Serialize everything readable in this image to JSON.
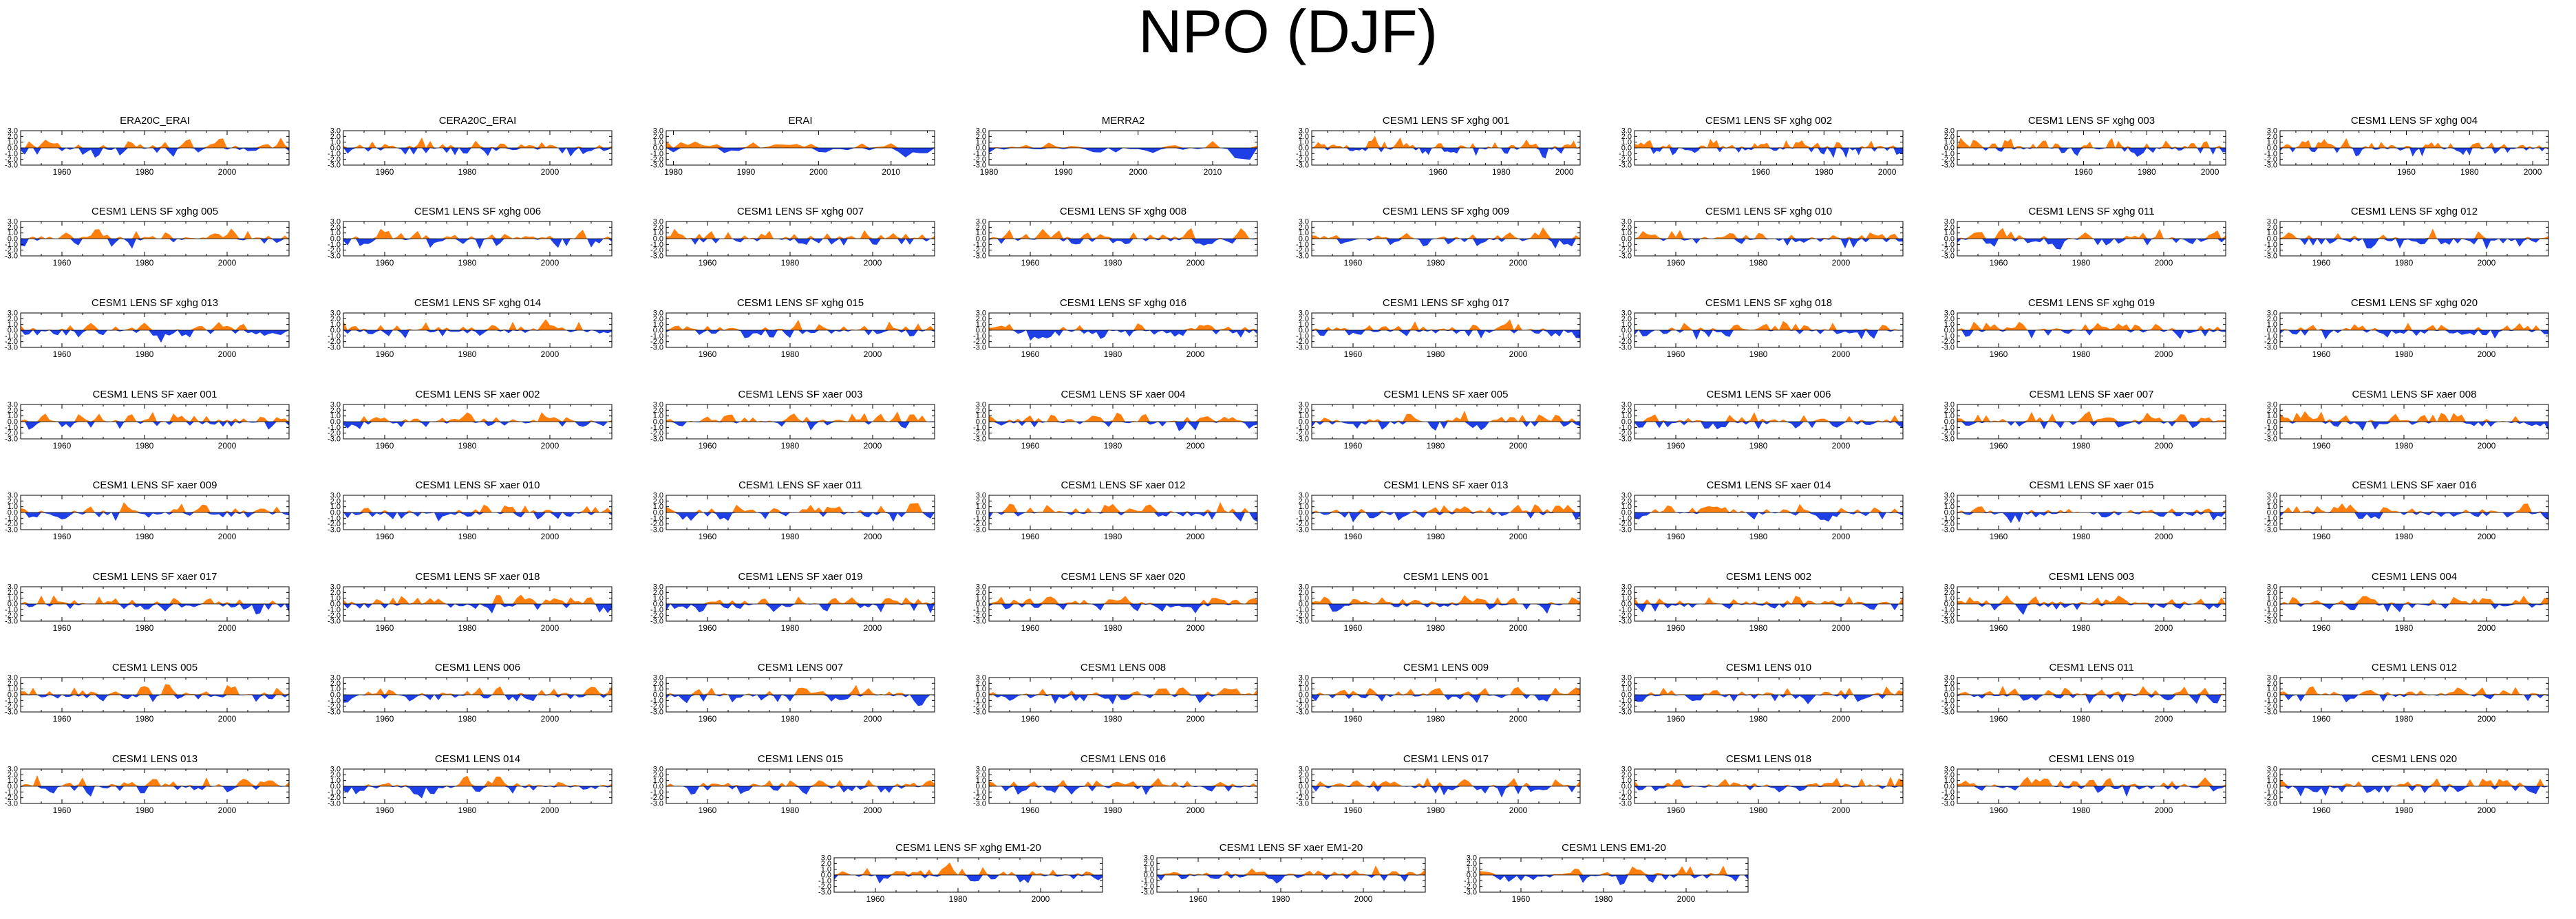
{
  "figure": {
    "title": "NPO (DJF)"
  },
  "colors": {
    "positive": "#ff7f0e",
    "negative": "#1f3fe6",
    "axis": "#000000",
    "background": "#ffffff"
  },
  "chart_data": {
    "type": "area",
    "title": "NPO (DJF)",
    "ylim": [
      -3.0,
      3.0
    ],
    "yticks": [
      "3.0",
      "2.0",
      "1.0",
      "0.0",
      "-1.0",
      "-2.0",
      "-3.0"
    ],
    "note": "Each panel is a DJF time series of the NPO index; values above zero shaded orange, below zero shaded blue. Series values are approximate reconstructions.",
    "panels": [
      {
        "title": "ERA20C_ERAI",
        "x_start": 1950,
        "x_end": 2015,
        "xticks": [
          "1960",
          "1980",
          "2000"
        ],
        "values": []
      },
      {
        "title": "CERA20C_ERAI",
        "x_start": 1950,
        "x_end": 2015,
        "xticks": [
          "1960",
          "1980",
          "2000"
        ],
        "values": []
      },
      {
        "title": "ERAI",
        "x_start": 1979,
        "x_end": 2016,
        "xticks": [
          "1980",
          "1990",
          "2000",
          "2010"
        ],
        "values": []
      },
      {
        "title": "MERRA2",
        "x_start": 1980,
        "x_end": 2016,
        "xticks": [
          "1980",
          "1990",
          "2000",
          "2010"
        ],
        "values": []
      },
      {
        "title": "CESM1 LENS SF xghg 001",
        "x_start": 1920,
        "x_end": 2005,
        "xticks": [
          "1960",
          "1980",
          "2000"
        ],
        "values": []
      },
      {
        "title": "CESM1 LENS SF xghg 002",
        "x_start": 1920,
        "x_end": 2005,
        "xticks": [
          "1960",
          "1980",
          "2000"
        ],
        "values": []
      },
      {
        "title": "CESM1 LENS SF xghg 003",
        "x_start": 1920,
        "x_end": 2005,
        "xticks": [
          "1960",
          "1980",
          "2000"
        ],
        "values": []
      },
      {
        "title": "CESM1 LENS SF xghg 004",
        "x_start": 1920,
        "x_end": 2005,
        "xticks": [
          "1960",
          "1980",
          "2000"
        ],
        "values": []
      },
      {
        "title": "CESM1 LENS SF xghg 005",
        "x_start": 1950,
        "x_end": 2015,
        "xticks": [
          "1960",
          "1980",
          "2000"
        ],
        "values": []
      },
      {
        "title": "CESM1 LENS SF xghg 006",
        "x_start": 1950,
        "x_end": 2015,
        "xticks": [
          "1960",
          "1980",
          "2000"
        ],
        "values": []
      },
      {
        "title": "CESM1 LENS SF xghg 007",
        "x_start": 1950,
        "x_end": 2015,
        "xticks": [
          "1960",
          "1980",
          "2000"
        ],
        "values": []
      },
      {
        "title": "CESM1 LENS SF xghg 008",
        "x_start": 1950,
        "x_end": 2015,
        "xticks": [
          "1960",
          "1980",
          "2000"
        ],
        "values": []
      },
      {
        "title": "CESM1 LENS SF xghg 009",
        "x_start": 1950,
        "x_end": 2015,
        "xticks": [
          "1960",
          "1980",
          "2000"
        ],
        "values": []
      },
      {
        "title": "CESM1 LENS SF xghg 010",
        "x_start": 1950,
        "x_end": 2015,
        "xticks": [
          "1960",
          "1980",
          "2000"
        ],
        "values": []
      },
      {
        "title": "CESM1 LENS SF xghg 011",
        "x_start": 1950,
        "x_end": 2015,
        "xticks": [
          "1960",
          "1980",
          "2000"
        ],
        "values": []
      },
      {
        "title": "CESM1 LENS SF xghg 012",
        "x_start": 1950,
        "x_end": 2015,
        "xticks": [
          "1960",
          "1980",
          "2000"
        ],
        "values": []
      },
      {
        "title": "CESM1 LENS SF xghg 013",
        "x_start": 1950,
        "x_end": 2015,
        "xticks": [
          "1960",
          "1980",
          "2000"
        ],
        "values": []
      },
      {
        "title": "CESM1 LENS SF xghg 014",
        "x_start": 1950,
        "x_end": 2015,
        "xticks": [
          "1960",
          "1980",
          "2000"
        ],
        "values": []
      },
      {
        "title": "CESM1 LENS SF xghg 015",
        "x_start": 1950,
        "x_end": 2015,
        "xticks": [
          "1960",
          "1980",
          "2000"
        ],
        "values": []
      },
      {
        "title": "CESM1 LENS SF xghg 016",
        "x_start": 1950,
        "x_end": 2015,
        "xticks": [
          "1960",
          "1980",
          "2000"
        ],
        "values": []
      },
      {
        "title": "CESM1 LENS SF xghg 017",
        "x_start": 1950,
        "x_end": 2015,
        "xticks": [
          "1960",
          "1980",
          "2000"
        ],
        "values": []
      },
      {
        "title": "CESM1 LENS SF xghg 018",
        "x_start": 1950,
        "x_end": 2015,
        "xticks": [
          "1960",
          "1980",
          "2000"
        ],
        "values": []
      },
      {
        "title": "CESM1 LENS SF xghg 019",
        "x_start": 1950,
        "x_end": 2015,
        "xticks": [
          "1960",
          "1980",
          "2000"
        ],
        "values": []
      },
      {
        "title": "CESM1 LENS SF xghg 020",
        "x_start": 1950,
        "x_end": 2015,
        "xticks": [
          "1960",
          "1980",
          "2000"
        ],
        "values": []
      },
      {
        "title": "CESM1 LENS SF xaer 001",
        "x_start": 1950,
        "x_end": 2015,
        "xticks": [
          "1960",
          "1980",
          "2000"
        ],
        "values": []
      },
      {
        "title": "CESM1 LENS SF xaer 002",
        "x_start": 1950,
        "x_end": 2015,
        "xticks": [
          "1960",
          "1980",
          "2000"
        ],
        "values": []
      },
      {
        "title": "CESM1 LENS SF xaer 003",
        "x_start": 1950,
        "x_end": 2015,
        "xticks": [
          "1960",
          "1980",
          "2000"
        ],
        "values": []
      },
      {
        "title": "CESM1 LENS SF xaer 004",
        "x_start": 1950,
        "x_end": 2015,
        "xticks": [
          "1960",
          "1980",
          "2000"
        ],
        "values": []
      },
      {
        "title": "CESM1 LENS SF xaer 005",
        "x_start": 1950,
        "x_end": 2015,
        "xticks": [
          "1960",
          "1980",
          "2000"
        ],
        "values": []
      },
      {
        "title": "CESM1 LENS SF xaer 006",
        "x_start": 1950,
        "x_end": 2015,
        "xticks": [
          "1960",
          "1980",
          "2000"
        ],
        "values": []
      },
      {
        "title": "CESM1 LENS SF xaer 007",
        "x_start": 1950,
        "x_end": 2015,
        "xticks": [
          "1960",
          "1980",
          "2000"
        ],
        "values": []
      },
      {
        "title": "CESM1 LENS SF xaer 008",
        "x_start": 1950,
        "x_end": 2015,
        "xticks": [
          "1960",
          "1980",
          "2000"
        ],
        "values": []
      },
      {
        "title": "CESM1 LENS SF xaer 009",
        "x_start": 1950,
        "x_end": 2015,
        "xticks": [
          "1960",
          "1980",
          "2000"
        ],
        "values": []
      },
      {
        "title": "CESM1 LENS SF xaer 010",
        "x_start": 1950,
        "x_end": 2015,
        "xticks": [
          "1960",
          "1980",
          "2000"
        ],
        "values": []
      },
      {
        "title": "CESM1 LENS SF xaer 011",
        "x_start": 1950,
        "x_end": 2015,
        "xticks": [
          "1960",
          "1980",
          "2000"
        ],
        "values": []
      },
      {
        "title": "CESM1 LENS SF xaer 012",
        "x_start": 1950,
        "x_end": 2015,
        "xticks": [
          "1960",
          "1980",
          "2000"
        ],
        "values": []
      },
      {
        "title": "CESM1 LENS SF xaer 013",
        "x_start": 1950,
        "x_end": 2015,
        "xticks": [
          "1960",
          "1980",
          "2000"
        ],
        "values": []
      },
      {
        "title": "CESM1 LENS SF xaer 014",
        "x_start": 1950,
        "x_end": 2015,
        "xticks": [
          "1960",
          "1980",
          "2000"
        ],
        "values": []
      },
      {
        "title": "CESM1 LENS SF xaer 015",
        "x_start": 1950,
        "x_end": 2015,
        "xticks": [
          "1960",
          "1980",
          "2000"
        ],
        "values": []
      },
      {
        "title": "CESM1 LENS SF xaer 016",
        "x_start": 1950,
        "x_end": 2015,
        "xticks": [
          "1960",
          "1980",
          "2000"
        ],
        "values": []
      },
      {
        "title": "CESM1 LENS SF xaer 017",
        "x_start": 1950,
        "x_end": 2015,
        "xticks": [
          "1960",
          "1980",
          "2000"
        ],
        "values": []
      },
      {
        "title": "CESM1 LENS SF xaer 018",
        "x_start": 1950,
        "x_end": 2015,
        "xticks": [
          "1960",
          "1980",
          "2000"
        ],
        "values": []
      },
      {
        "title": "CESM1 LENS SF xaer 019",
        "x_start": 1950,
        "x_end": 2015,
        "xticks": [
          "1960",
          "1980",
          "2000"
        ],
        "values": []
      },
      {
        "title": "CESM1 LENS SF xaer 020",
        "x_start": 1950,
        "x_end": 2015,
        "xticks": [
          "1960",
          "1980",
          "2000"
        ],
        "values": []
      },
      {
        "title": "CESM1 LENS 001",
        "x_start": 1950,
        "x_end": 2015,
        "xticks": [
          "1960",
          "1980",
          "2000"
        ],
        "values": []
      },
      {
        "title": "CESM1 LENS 002",
        "x_start": 1950,
        "x_end": 2015,
        "xticks": [
          "1960",
          "1980",
          "2000"
        ],
        "values": []
      },
      {
        "title": "CESM1 LENS 003",
        "x_start": 1950,
        "x_end": 2015,
        "xticks": [
          "1960",
          "1980",
          "2000"
        ],
        "values": []
      },
      {
        "title": "CESM1 LENS 004",
        "x_start": 1950,
        "x_end": 2015,
        "xticks": [
          "1960",
          "1980",
          "2000"
        ],
        "values": []
      },
      {
        "title": "CESM1 LENS 005",
        "x_start": 1950,
        "x_end": 2015,
        "xticks": [
          "1960",
          "1980",
          "2000"
        ],
        "values": []
      },
      {
        "title": "CESM1 LENS 006",
        "x_start": 1950,
        "x_end": 2015,
        "xticks": [
          "1960",
          "1980",
          "2000"
        ],
        "values": []
      },
      {
        "title": "CESM1 LENS 007",
        "x_start": 1950,
        "x_end": 2015,
        "xticks": [
          "1960",
          "1980",
          "2000"
        ],
        "values": []
      },
      {
        "title": "CESM1 LENS 008",
        "x_start": 1950,
        "x_end": 2015,
        "xticks": [
          "1960",
          "1980",
          "2000"
        ],
        "values": []
      },
      {
        "title": "CESM1 LENS 009",
        "x_start": 1950,
        "x_end": 2015,
        "xticks": [
          "1960",
          "1980",
          "2000"
        ],
        "values": []
      },
      {
        "title": "CESM1 LENS 010",
        "x_start": 1950,
        "x_end": 2015,
        "xticks": [
          "1960",
          "1980",
          "2000"
        ],
        "values": []
      },
      {
        "title": "CESM1 LENS 011",
        "x_start": 1950,
        "x_end": 2015,
        "xticks": [
          "1960",
          "1980",
          "2000"
        ],
        "values": []
      },
      {
        "title": "CESM1 LENS 012",
        "x_start": 1950,
        "x_end": 2015,
        "xticks": [
          "1960",
          "1980",
          "2000"
        ],
        "values": []
      },
      {
        "title": "CESM1 LENS 013",
        "x_start": 1950,
        "x_end": 2015,
        "xticks": [
          "1960",
          "1980",
          "2000"
        ],
        "values": []
      },
      {
        "title": "CESM1 LENS 014",
        "x_start": 1950,
        "x_end": 2015,
        "xticks": [
          "1960",
          "1980",
          "2000"
        ],
        "values": []
      },
      {
        "title": "CESM1 LENS 015",
        "x_start": 1950,
        "x_end": 2015,
        "xticks": [
          "1960",
          "1980",
          "2000"
        ],
        "values": []
      },
      {
        "title": "CESM1 LENS 016",
        "x_start": 1950,
        "x_end": 2015,
        "xticks": [
          "1960",
          "1980",
          "2000"
        ],
        "values": []
      },
      {
        "title": "CESM1 LENS 017",
        "x_start": 1950,
        "x_end": 2015,
        "xticks": [
          "1960",
          "1980",
          "2000"
        ],
        "values": []
      },
      {
        "title": "CESM1 LENS 018",
        "x_start": 1950,
        "x_end": 2015,
        "xticks": [
          "1960",
          "1980",
          "2000"
        ],
        "values": []
      },
      {
        "title": "CESM1 LENS 019",
        "x_start": 1950,
        "x_end": 2015,
        "xticks": [
          "1960",
          "1980",
          "2000"
        ],
        "values": []
      },
      {
        "title": "CESM1 LENS 020",
        "x_start": 1950,
        "x_end": 2015,
        "xticks": [
          "1960",
          "1980",
          "2000"
        ],
        "values": []
      },
      {
        "title": "CESM1 LENS SF xghg EM1-20",
        "x_start": 1950,
        "x_end": 2015,
        "xticks": [
          "1960",
          "1980",
          "2000"
        ],
        "values": []
      },
      {
        "title": "CESM1 LENS SF xaer EM1-20",
        "x_start": 1950,
        "x_end": 2015,
        "xticks": [
          "1960",
          "1980",
          "2000"
        ],
        "values": []
      },
      {
        "title": "CESM1 LENS EM1-20",
        "x_start": 1950,
        "x_end": 2015,
        "xticks": [
          "1960",
          "1980",
          "2000"
        ],
        "values": []
      }
    ]
  }
}
